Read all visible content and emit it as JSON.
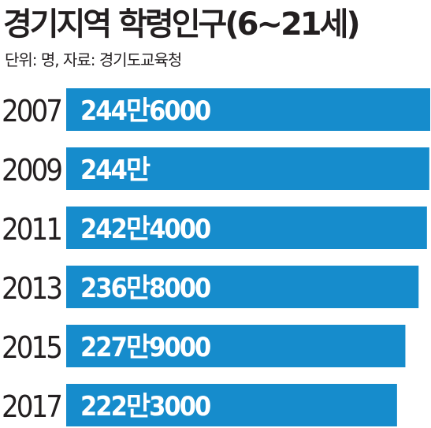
{
  "title": "경기지역 학령인구(6~21세)",
  "subtitle": "단위: 명, 자료: 경기도교육청",
  "colors": {
    "bar": "#168ccc",
    "label": "#ffffff",
    "text": "#231f20"
  },
  "chart_data": {
    "type": "bar",
    "orientation": "horizontal",
    "title": "경기지역 학령인구(6~21세)",
    "units": "명",
    "source": "경기도교육청",
    "categories": [
      "2007",
      "2009",
      "2011",
      "2013",
      "2015",
      "2017"
    ],
    "values": [
      2446000,
      2440000,
      2424000,
      2368000,
      2279000,
      2223000
    ],
    "data_labels": [
      "244만6000",
      "244만",
      "242만4000",
      "236만8000",
      "227만9000",
      "222만3000"
    ],
    "legend": "none",
    "grid": false
  }
}
